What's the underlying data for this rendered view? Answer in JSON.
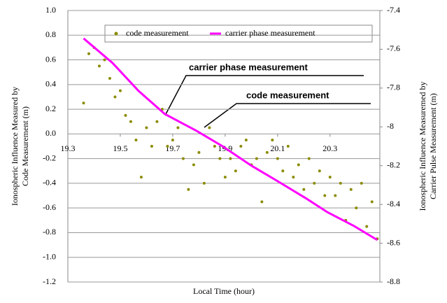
{
  "chart_data": {
    "type": "line",
    "x_label": "Local Time (hour)",
    "y_label": [
      "Ionospheric Influence Measured by",
      "Code Measurement (m)"
    ],
    "y2_label": [
      "Ionospheric Influence Measuremed by",
      "Carrier Pulse Measurement (m)"
    ],
    "annotations": [
      "carrier phase measurement",
      "code measurement"
    ],
    "xlim": [
      19.3,
      20.49
    ],
    "xticks": [
      19.3,
      19.5,
      19.7,
      19.9,
      20.1,
      20.3
    ],
    "ylim": [
      -1.2,
      1.0
    ],
    "yticks": [
      {
        "value": 1.0,
        "label": "1.0"
      },
      0.8,
      0.6,
      0.4,
      0.2,
      {
        "value": 0.0,
        "label": "0.0"
      },
      -0.2,
      -0.4,
      -0.6,
      -0.8,
      {
        "value": -1.0,
        "label": "-1.0"
      },
      -1.2
    ],
    "y2lim": [
      -8.8,
      -7.4
    ],
    "y2ticks": [
      -7.4,
      -7.6,
      -7.8,
      -8,
      -8.2,
      -8.4,
      -8.6,
      -8.8
    ],
    "grid": true,
    "series": [
      {
        "name": "code measurement",
        "color": "#8b8b00",
        "marker": "dots",
        "x": [
          19.36,
          19.38,
          19.4,
          19.42,
          19.44,
          19.46,
          19.48,
          19.5,
          19.52,
          19.54,
          19.56,
          19.58,
          19.6,
          19.62,
          19.64,
          19.66,
          19.68,
          19.7,
          19.72,
          19.74,
          19.76,
          19.78,
          19.8,
          19.82,
          19.84,
          19.86,
          19.88,
          19.9,
          19.92,
          19.94,
          19.96,
          19.98,
          20.0,
          20.02,
          20.04,
          20.06,
          20.08,
          20.1,
          20.12,
          20.14,
          20.16,
          20.18,
          20.2,
          20.22,
          20.24,
          20.26,
          20.28,
          20.3,
          20.32,
          20.34,
          20.36,
          20.38,
          20.4,
          20.42,
          20.44,
          20.46,
          20.48
        ],
        "values": [
          0.25,
          0.65,
          0.7,
          0.55,
          0.6,
          0.45,
          0.3,
          0.35,
          0.15,
          0.1,
          -0.05,
          -0.35,
          0.05,
          -0.1,
          0.1,
          0.2,
          -0.1,
          -0.05,
          0.05,
          -0.2,
          -0.45,
          -0.25,
          -0.15,
          -0.4,
          0.05,
          -0.1,
          -0.2,
          -0.35,
          -0.2,
          -0.3,
          -0.1,
          -0.05,
          -0.25,
          -0.2,
          -0.55,
          -0.15,
          -0.05,
          -0.2,
          -0.3,
          -0.1,
          -0.35,
          -0.25,
          -0.45,
          -0.2,
          -0.4,
          -0.3,
          -0.5,
          -0.35,
          -0.5,
          -0.4,
          -0.7,
          -0.45,
          -0.6,
          -0.4,
          -0.75,
          -0.55,
          -0.85
        ]
      },
      {
        "name": "carrier phase measurement",
        "color": "#ff00ff",
        "axis": "y2",
        "x": [
          19.36,
          19.47,
          19.57,
          19.67,
          19.79,
          19.89,
          20.0,
          20.1,
          20.21,
          20.29,
          20.39,
          20.48
        ],
        "values": [
          -7.544,
          -7.67,
          -7.815,
          -7.934,
          -8.02,
          -8.1,
          -8.2,
          -8.28,
          -8.37,
          -8.44,
          -8.51,
          -8.583
        ]
      }
    ]
  }
}
